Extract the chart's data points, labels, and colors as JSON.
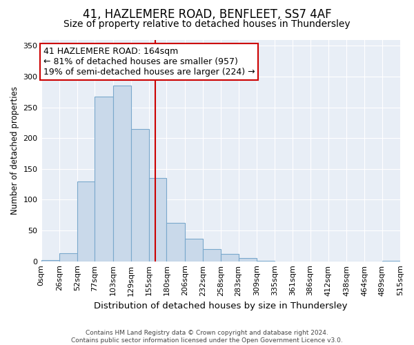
{
  "title": "41, HAZLEMERE ROAD, BENFLEET, SS7 4AF",
  "subtitle": "Size of property relative to detached houses in Thundersley",
  "xlabel": "Distribution of detached houses by size in Thundersley",
  "ylabel": "Number of detached properties",
  "bin_labels": [
    "0sqm",
    "26sqm",
    "52sqm",
    "77sqm",
    "103sqm",
    "129sqm",
    "155sqm",
    "180sqm",
    "206sqm",
    "232sqm",
    "258sqm",
    "283sqm",
    "309sqm",
    "335sqm",
    "361sqm",
    "386sqm",
    "412sqm",
    "438sqm",
    "464sqm",
    "489sqm",
    "515sqm"
  ],
  "bin_edges": [
    0,
    26,
    52,
    77,
    103,
    129,
    155,
    180,
    206,
    232,
    258,
    283,
    309,
    335,
    361,
    386,
    412,
    438,
    464,
    489,
    515
  ],
  "bar_heights": [
    2,
    13,
    130,
    267,
    285,
    215,
    135,
    62,
    37,
    20,
    12,
    5,
    1,
    0,
    0,
    0,
    0,
    0,
    0,
    1,
    0
  ],
  "bar_color": "#c9d9ea",
  "bar_edge_color": "#7aa8cc",
  "property_value": 164,
  "vline_color": "#cc0000",
  "annotation_line1": "41 HAZLEMERE ROAD: 164sqm",
  "annotation_line2": "← 81% of detached houses are smaller (957)",
  "annotation_line3": "19% of semi-detached houses are larger (224) →",
  "annotation_box_color": "#ffffff",
  "annotation_box_edge": "#cc0000",
  "ylim": [
    0,
    360
  ],
  "yticks": [
    0,
    50,
    100,
    150,
    200,
    250,
    300,
    350
  ],
  "xlim": [
    0,
    515
  ],
  "background_color": "#e8eef6",
  "footer_text": "Contains HM Land Registry data © Crown copyright and database right 2024.\nContains public sector information licensed under the Open Government Licence v3.0.",
  "title_fontsize": 12,
  "subtitle_fontsize": 10,
  "xlabel_fontsize": 9.5,
  "ylabel_fontsize": 8.5,
  "annotation_fontsize": 9,
  "tick_fontsize": 8
}
